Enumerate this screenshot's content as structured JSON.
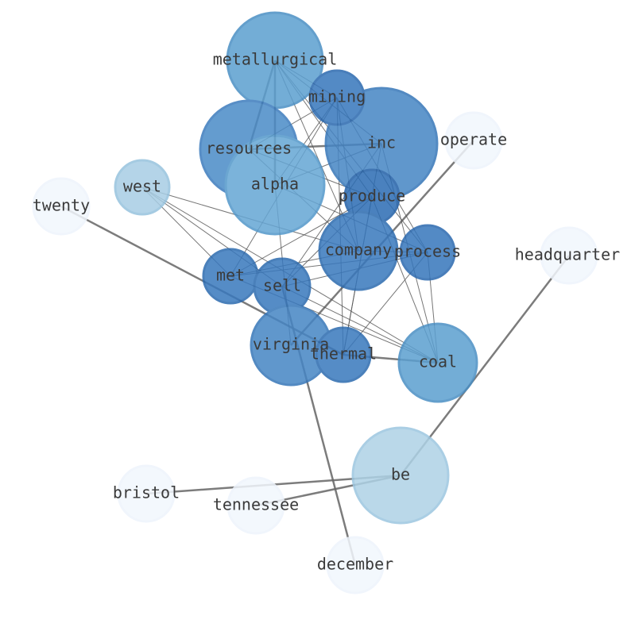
{
  "nodes": [
    {
      "label": "metallurgical"
    },
    {
      "label": "mining"
    },
    {
      "label": "inc"
    },
    {
      "label": "operate"
    },
    {
      "label": "resources"
    },
    {
      "label": "west"
    },
    {
      "label": "alpha"
    },
    {
      "label": "twenty"
    },
    {
      "label": "produce"
    },
    {
      "label": "company"
    },
    {
      "label": "process"
    },
    {
      "label": "headquarter"
    },
    {
      "label": "met"
    },
    {
      "label": "sell"
    },
    {
      "label": "virginia"
    },
    {
      "label": "thermal"
    },
    {
      "label": "coal"
    },
    {
      "label": "be"
    },
    {
      "label": "bristol"
    },
    {
      "label": "tennessee"
    },
    {
      "label": "december"
    }
  ]
}
